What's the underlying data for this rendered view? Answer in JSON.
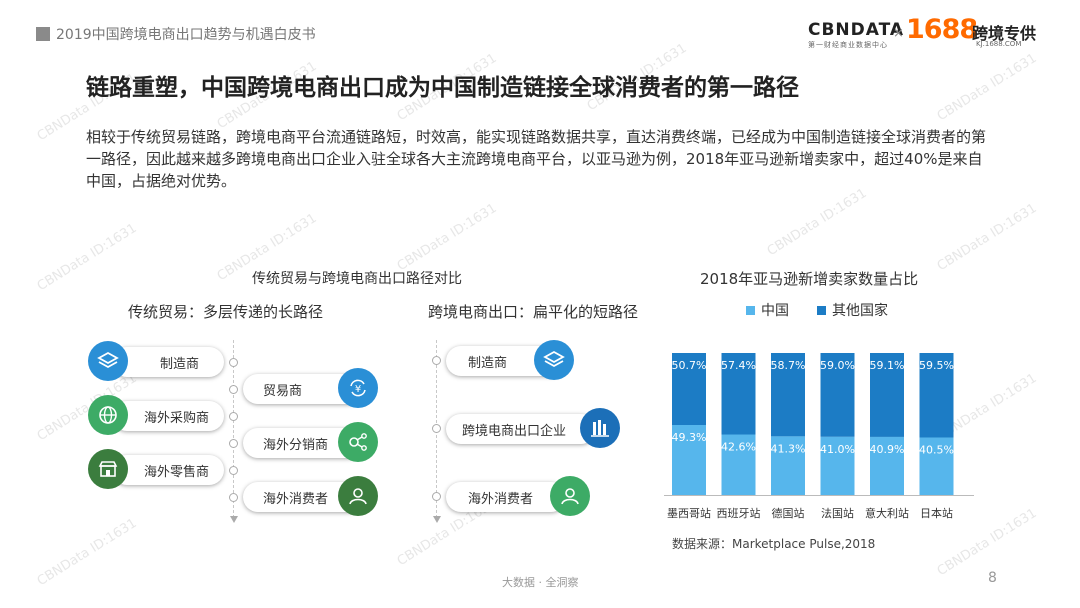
{
  "header": {
    "report_title": "2019中国跨境电商出口趋势与机遇白皮书"
  },
  "logos": {
    "cbndata": "CBNDATA",
    "cbndata_sub": "第一财经商业数据中心",
    "times": "×",
    "brand_1688": "1688",
    "kuajing": "跨境专供",
    "kuajing_sub": "KJ.1688.COM"
  },
  "title": "链路重塑，中国跨境电商出口成为中国制造链接全球消费者的第一路径",
  "paragraph": "相较于传统贸易链路，跨境电商平台流通链路短，时效高，能实现链路数据共享，直达消费终端，已经成为中国制造链接全球消费者的第一路径，因此越来越多跨境电商出口企业入驻全球各大主流跨境电商平台，以亚马逊为例，2018年亚马逊新增卖家中，超过40%是来自中国，占据绝对优势。",
  "comparison": {
    "title": "传统贸易与跨境电商出口路径对比",
    "traditional": {
      "title": "传统贸易：多层传递的长路径",
      "left_items": [
        "制造商",
        "海外采购商",
        "海外零售商"
      ],
      "right_items": [
        "贸易商",
        "海外分销商",
        "海外消费者"
      ],
      "icons": {
        "manufacturer": "layers-icon",
        "buyer": "globe-icon",
        "retailer": "shop-icon",
        "trader": "yen-exchange-icon",
        "distributor": "distribution-icon",
        "consumer": "user-icon"
      }
    },
    "crossborder": {
      "title": "跨境电商出口：扁平化的短路径",
      "items": [
        "制造商",
        "跨境电商出口企业",
        "海外消费者"
      ],
      "icons": {
        "manufacturer": "layers-icon",
        "enterprise": "building-icon",
        "consumer": "user-icon"
      }
    }
  },
  "chart_data": {
    "type": "bar",
    "title": "2018年亚马逊新增卖家数量占比",
    "stacked": true,
    "categories": [
      "墨西哥站",
      "西班牙站",
      "德国站",
      "法国站",
      "意大利站",
      "日本站"
    ],
    "series": [
      {
        "name": "中国",
        "values": [
          49.3,
          42.6,
          41.3,
          41.0,
          40.9,
          40.5
        ],
        "labels": [
          "49.3%",
          "42.6%",
          "41.3%",
          "41.0%",
          "40.9%",
          "40.5%"
        ],
        "color": "#56b6ec"
      },
      {
        "name": "其他国家",
        "values": [
          50.7,
          57.4,
          58.7,
          59.0,
          59.1,
          59.5
        ],
        "labels": [
          "50.7%",
          "57.4%",
          "58.7%",
          "59.0%",
          "59.1%",
          "59.5%"
        ],
        "color": "#1c7cc5"
      }
    ],
    "ylim": [
      0,
      100
    ],
    "legend": "top",
    "source": "数据来源：Marketplace Pulse,2018"
  },
  "colors": {
    "green": "#3dab66",
    "blue": "#2a8fd6"
  },
  "footer": {
    "text": "大数据 · 全洞察",
    "page": "8"
  },
  "watermark": "CBNData ID:1631"
}
